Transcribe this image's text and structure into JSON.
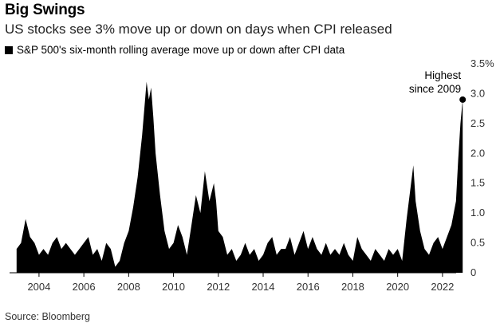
{
  "header": {
    "title": "Big Swings",
    "subtitle": "US stocks see 3% move up or down on days when CPI released"
  },
  "legend": {
    "label": "S&P 500's six-month rolling average move up or down after CPI data",
    "color": "#000000"
  },
  "source": "Source: Bloomberg",
  "chart_data": {
    "type": "area",
    "title": "Big Swings",
    "subtitle": "US stocks see 3% move up or down on days when CPI released",
    "series": [
      {
        "name": "S&P 500's six-month rolling average move up or down after CPI data",
        "color": "#000000",
        "x": [
          2003.0,
          2003.2,
          2003.4,
          2003.6,
          2003.8,
          2004.0,
          2004.2,
          2004.4,
          2004.6,
          2004.8,
          2005.0,
          2005.2,
          2005.4,
          2005.6,
          2005.8,
          2006.0,
          2006.2,
          2006.4,
          2006.6,
          2006.8,
          2007.0,
          2007.2,
          2007.4,
          2007.6,
          2007.8,
          2008.0,
          2008.2,
          2008.4,
          2008.6,
          2008.8,
          2008.9,
          2009.0,
          2009.1,
          2009.2,
          2009.4,
          2009.6,
          2009.8,
          2010.0,
          2010.2,
          2010.4,
          2010.6,
          2010.8,
          2011.0,
          2011.2,
          2011.4,
          2011.6,
          2011.8,
          2011.9,
          2012.0,
          2012.2,
          2012.4,
          2012.6,
          2012.8,
          2013.0,
          2013.2,
          2013.4,
          2013.6,
          2013.8,
          2014.0,
          2014.2,
          2014.4,
          2014.6,
          2014.8,
          2015.0,
          2015.2,
          2015.4,
          2015.6,
          2015.8,
          2016.0,
          2016.2,
          2016.4,
          2016.6,
          2016.8,
          2017.0,
          2017.2,
          2017.4,
          2017.6,
          2017.8,
          2018.0,
          2018.2,
          2018.4,
          2018.6,
          2018.8,
          2019.0,
          2019.2,
          2019.4,
          2019.6,
          2019.8,
          2020.0,
          2020.2,
          2020.4,
          2020.6,
          2020.7,
          2020.8,
          2021.0,
          2021.2,
          2021.4,
          2021.6,
          2021.8,
          2022.0,
          2022.2,
          2022.4,
          2022.6,
          2022.7,
          2022.8,
          2022.9
        ],
        "values": [
          0.4,
          0.5,
          0.9,
          0.6,
          0.5,
          0.3,
          0.4,
          0.3,
          0.5,
          0.6,
          0.4,
          0.5,
          0.4,
          0.3,
          0.4,
          0.5,
          0.6,
          0.3,
          0.4,
          0.2,
          0.5,
          0.4,
          0.1,
          0.2,
          0.5,
          0.7,
          1.1,
          1.6,
          2.3,
          3.2,
          2.9,
          3.1,
          2.6,
          2.0,
          1.3,
          0.7,
          0.4,
          0.5,
          0.8,
          0.6,
          0.3,
          0.8,
          1.3,
          1.0,
          1.7,
          1.2,
          1.5,
          1.2,
          0.7,
          0.6,
          0.3,
          0.4,
          0.2,
          0.3,
          0.5,
          0.3,
          0.4,
          0.2,
          0.3,
          0.5,
          0.6,
          0.3,
          0.4,
          0.4,
          0.6,
          0.3,
          0.5,
          0.7,
          0.4,
          0.6,
          0.4,
          0.3,
          0.5,
          0.3,
          0.4,
          0.3,
          0.5,
          0.3,
          0.2,
          0.6,
          0.4,
          0.3,
          0.2,
          0.4,
          0.3,
          0.2,
          0.4,
          0.3,
          0.4,
          0.2,
          0.9,
          1.5,
          1.8,
          1.2,
          0.7,
          0.4,
          0.3,
          0.5,
          0.6,
          0.4,
          0.6,
          0.8,
          1.2,
          1.9,
          2.5,
          2.9
        ]
      }
    ],
    "xlim": [
      2002.9,
      2023.0
    ],
    "ylim": [
      0,
      3.5
    ],
    "xticks": [
      2004,
      2006,
      2008,
      2010,
      2012,
      2014,
      2016,
      2018,
      2020,
      2022
    ],
    "xticklabels": [
      "2004",
      "2006",
      "2008",
      "2010",
      "2012",
      "2014",
      "2016",
      "2018",
      "2020",
      "2022"
    ],
    "yticks": [
      0,
      0.5,
      1.0,
      1.5,
      2.0,
      2.5,
      3.0,
      3.5
    ],
    "yticklabels": [
      "0",
      "0.5",
      "1.0",
      "1.5",
      "2.0",
      "2.5",
      "3.0",
      "3.5%"
    ],
    "grid": false,
    "legend_position": "top-left",
    "annotation": {
      "lines": [
        "Highest",
        "since 2009"
      ],
      "x": 2022.9,
      "y": 2.9
    }
  }
}
